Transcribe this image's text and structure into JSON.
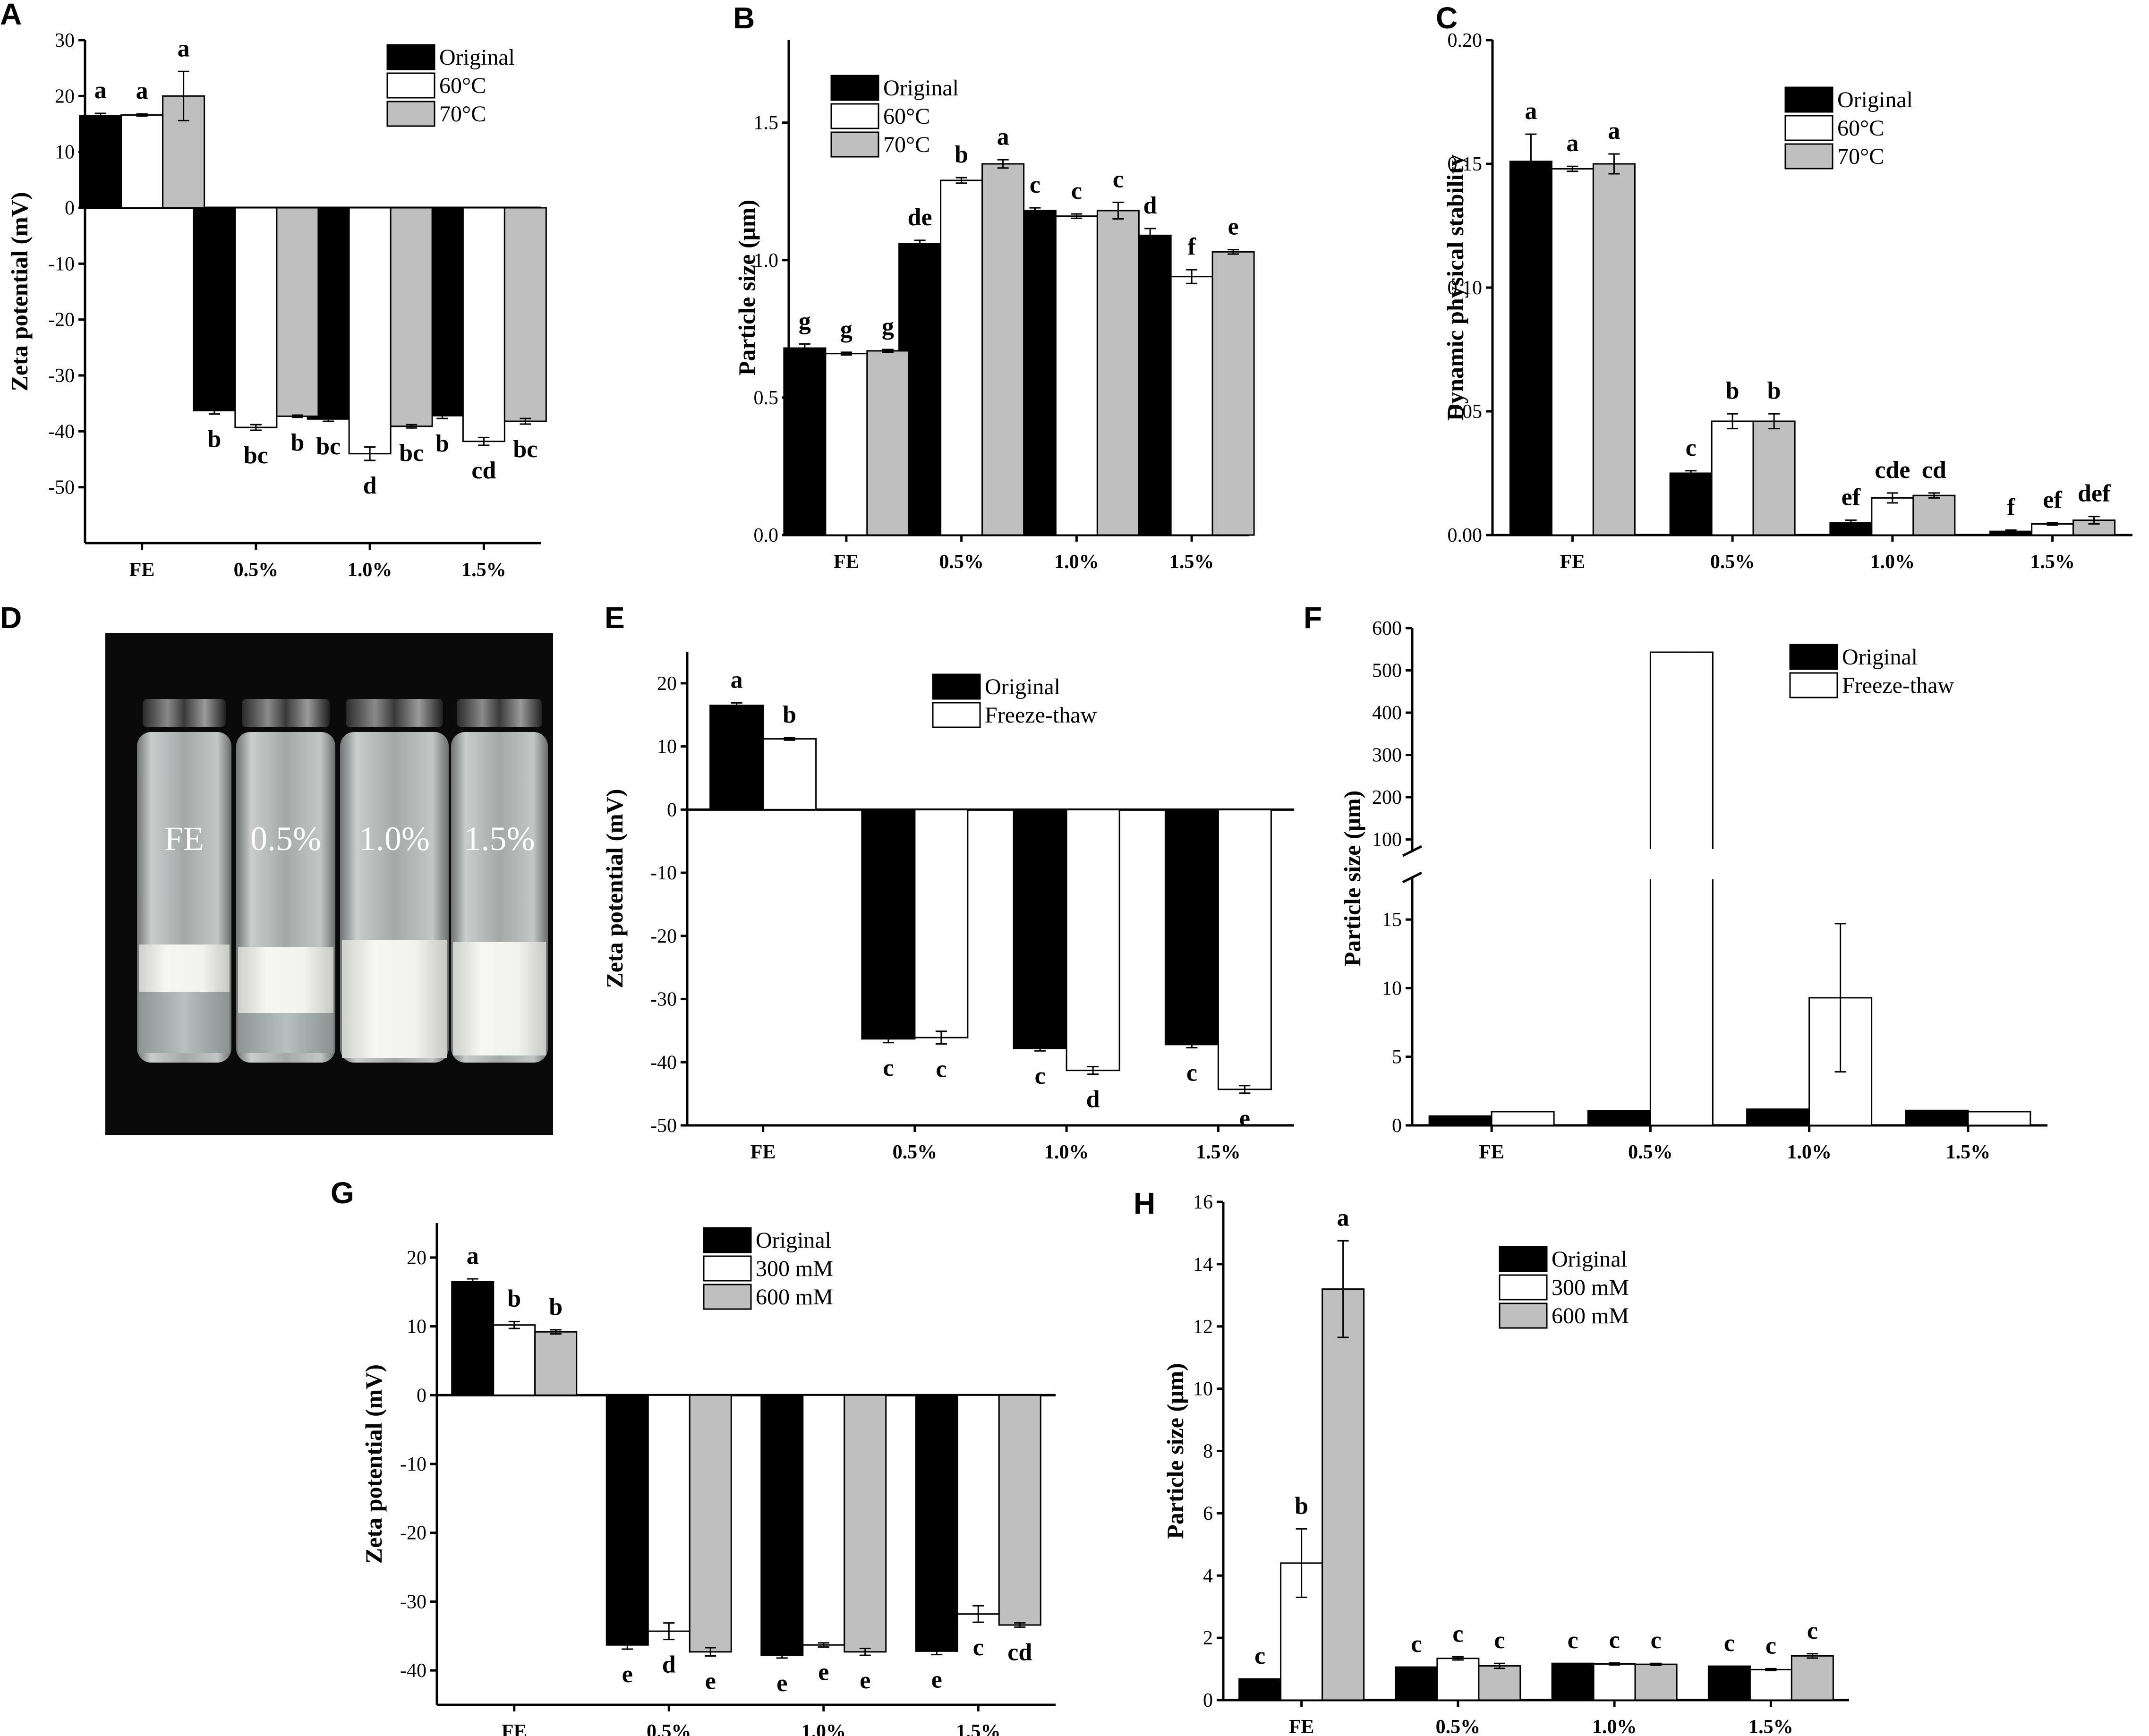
{
  "panel_labels": [
    "A",
    "B",
    "C",
    "D",
    "E",
    "F",
    "G",
    "H"
  ],
  "photo": {
    "labels": [
      "FE",
      "0.5%",
      "1.0%",
      "1.5%"
    ]
  },
  "colors": {
    "original": "#000000",
    "treatment_1": "#ffffff",
    "treatment_2": "#bfbfbf"
  },
  "chart_data": [
    {
      "panel": "A",
      "type": "bar",
      "categories": [
        "FE",
        "0.5%",
        "1.0%",
        "1.5%"
      ],
      "ylabel": "Zeta potential (mV)",
      "xlabel": "",
      "ylim": [
        -60,
        30
      ],
      "yticks": [
        -50,
        -40,
        -30,
        -20,
        -10,
        0,
        10,
        20,
        30
      ],
      "legend_position": "top-right",
      "series": [
        {
          "name": "Original",
          "color": "#000000",
          "values": [
            16.5,
            -36.3,
            -37.8,
            -37.2
          ],
          "errors": [
            0.4,
            0.6,
            0.4,
            0.5
          ],
          "letters": [
            "a",
            "b",
            "bc",
            "b"
          ]
        },
        {
          "name": "60°C",
          "color": "#ffffff",
          "values": [
            16.6,
            -39.3,
            -44.0,
            -41.8
          ],
          "errors": [
            0.2,
            0.5,
            1.2,
            0.7
          ],
          "letters": [
            "a",
            "bc",
            "d",
            "cd"
          ]
        },
        {
          "name": "70°C",
          "color": "#bfbfbf",
          "values": [
            20.0,
            -37.3,
            -39.1,
            -38.2
          ],
          "errors": [
            4.4,
            0.2,
            0.3,
            0.5
          ],
          "letters": [
            "a",
            "b",
            "bc",
            "bc"
          ]
        }
      ]
    },
    {
      "panel": "B",
      "type": "bar",
      "categories": [
        "FE",
        "0.5%",
        "1.0%",
        "1.5%"
      ],
      "ylabel": "Particle size (μm)",
      "xlabel": "",
      "ylim": [
        0,
        1.8
      ],
      "yticks": [
        0.0,
        0.5,
        1.0,
        1.5
      ],
      "legend_position": "top-left",
      "series": [
        {
          "name": "Original",
          "color": "#000000",
          "values": [
            0.68,
            1.06,
            1.18,
            1.09
          ],
          "errors": [
            0.015,
            0.012,
            0.01,
            0.025
          ],
          "letters": [
            "g",
            "de",
            "c",
            "d"
          ]
        },
        {
          "name": "60°C",
          "color": "#ffffff",
          "values": [
            0.66,
            1.29,
            1.16,
            0.94
          ],
          "errors": [
            0.005,
            0.01,
            0.008,
            0.025
          ],
          "letters": [
            "g",
            "b",
            "c",
            "f"
          ]
        },
        {
          "name": "70°C",
          "color": "#bfbfbf",
          "values": [
            0.67,
            1.35,
            1.18,
            1.03
          ],
          "errors": [
            0.005,
            0.015,
            0.03,
            0.008
          ],
          "letters": [
            "g",
            "a",
            "c",
            "e"
          ]
        }
      ]
    },
    {
      "panel": "C",
      "type": "bar",
      "categories": [
        "FE",
        "0.5%",
        "1.0%",
        "1.5%"
      ],
      "ylabel": "Dynamic physical stability",
      "xlabel": "",
      "ylim": [
        0,
        0.2
      ],
      "yticks": [
        0.0,
        0.05,
        0.1,
        0.15,
        0.2
      ],
      "tick_labels": [
        "0.00",
        "0.05",
        "0.10",
        "0.15",
        "0.20"
      ],
      "legend_position": "top-right",
      "series": [
        {
          "name": "Original",
          "color": "#000000",
          "values": [
            0.151,
            0.025,
            0.005,
            0.0015
          ],
          "errors": [
            0.011,
            0.001,
            0.001,
            0.0005
          ],
          "letters": [
            "a",
            "c",
            "ef",
            "f"
          ]
        },
        {
          "name": "60°C",
          "color": "#ffffff",
          "values": [
            0.148,
            0.046,
            0.015,
            0.0045
          ],
          "errors": [
            0.001,
            0.003,
            0.002,
            0.0005
          ],
          "letters": [
            "a",
            "b",
            "cde",
            "ef"
          ]
        },
        {
          "name": "70°C",
          "color": "#bfbfbf",
          "values": [
            0.15,
            0.046,
            0.016,
            0.006
          ],
          "errors": [
            0.004,
            0.003,
            0.001,
            0.0015
          ],
          "letters": [
            "a",
            "b",
            "cd",
            "def"
          ]
        }
      ]
    },
    {
      "panel": "E",
      "type": "bar",
      "categories": [
        "FE",
        "0.5%",
        "1.0%",
        "1.5%"
      ],
      "ylabel": "Zeta potential (mV)",
      "xlabel": "",
      "ylim": [
        -50,
        25
      ],
      "yticks": [
        -50,
        -40,
        -30,
        -20,
        -10,
        0,
        10,
        20
      ],
      "legend_position": "top-right",
      "series": [
        {
          "name": "Original",
          "color": "#000000",
          "values": [
            16.5,
            -36.3,
            -37.8,
            -37.2
          ],
          "errors": [
            0.4,
            0.6,
            0.4,
            0.5
          ],
          "letters": [
            "a",
            "c",
            "c",
            "c"
          ]
        },
        {
          "name": "Freeze-thaw",
          "color": "#ffffff",
          "values": [
            11.2,
            -36.1,
            -41.3,
            -44.3
          ],
          "errors": [
            0.2,
            1.0,
            0.6,
            0.6
          ],
          "letters": [
            "b",
            "c",
            "d",
            "e"
          ]
        }
      ]
    },
    {
      "panel": "F",
      "type": "bar",
      "categories": [
        "FE",
        "0.5%",
        "1.0%",
        "1.5%"
      ],
      "ylabel": "Particle size (μm)",
      "xlabel": "",
      "axis_break": {
        "lower": [
          0,
          18
        ],
        "upper": [
          0,
          600
        ]
      },
      "yticks_lower": [
        0,
        5,
        10,
        15
      ],
      "yticks_upper": [
        100,
        200,
        300,
        400,
        500,
        600
      ],
      "legend_position": "top-right",
      "series": [
        {
          "name": "Original",
          "color": "#000000",
          "values": [
            0.68,
            1.06,
            1.18,
            1.09
          ],
          "errors": [
            0,
            0,
            0,
            0
          ]
        },
        {
          "name": "Freeze-thaw",
          "color": "#ffffff",
          "values": [
            1.0,
            543,
            9.3,
            1.0
          ],
          "errors": [
            0,
            2,
            5.4,
            0
          ]
        }
      ]
    },
    {
      "panel": "G",
      "type": "bar",
      "categories": [
        "FE",
        "0.5%",
        "1.0%",
        "1.5%"
      ],
      "ylabel": "Zeta potential (mV)",
      "xlabel": "",
      "ylim": [
        -45,
        25
      ],
      "yticks": [
        -40,
        -30,
        -20,
        -10,
        0,
        10,
        20
      ],
      "legend_position": "top-right",
      "series": [
        {
          "name": "Original",
          "color": "#000000",
          "values": [
            16.5,
            -36.3,
            -37.8,
            -37.2
          ],
          "errors": [
            0.4,
            0.6,
            0.4,
            0.5
          ],
          "letters": [
            "a",
            "e",
            "e",
            "e"
          ]
        },
        {
          "name": "300 mM",
          "color": "#ffffff",
          "values": [
            10.2,
            -34.3,
            -36.3,
            -31.8
          ],
          "errors": [
            0.5,
            1.2,
            0.3,
            1.2
          ],
          "letters": [
            "b",
            "d",
            "e",
            "c"
          ]
        },
        {
          "name": "600 mM",
          "color": "#bfbfbf",
          "values": [
            9.2,
            -37.3,
            -37.3,
            -33.4
          ],
          "errors": [
            0.3,
            0.6,
            0.5,
            0.3
          ],
          "letters": [
            "b",
            "e",
            "e",
            "cd"
          ]
        }
      ]
    },
    {
      "panel": "H",
      "type": "bar",
      "categories": [
        "FE",
        "0.5%",
        "1.0%",
        "1.5%"
      ],
      "ylabel": "Particle size (μm)",
      "xlabel": "",
      "ylim": [
        0,
        16
      ],
      "yticks": [
        0,
        2,
        4,
        6,
        8,
        10,
        12,
        14,
        16
      ],
      "legend_position": "top-right",
      "series": [
        {
          "name": "Original",
          "color": "#000000",
          "values": [
            0.68,
            1.06,
            1.18,
            1.09
          ],
          "errors": [
            0,
            0,
            0,
            0
          ],
          "letters": [
            "c",
            "c",
            "c",
            "c"
          ]
        },
        {
          "name": "300 mM",
          "color": "#ffffff",
          "values": [
            4.4,
            1.34,
            1.16,
            0.98
          ],
          "errors": [
            1.1,
            0.05,
            0.03,
            0.03
          ],
          "letters": [
            "b",
            "c",
            "c",
            "c"
          ]
        },
        {
          "name": "600 mM",
          "color": "#bfbfbf",
          "values": [
            13.2,
            1.1,
            1.15,
            1.42
          ],
          "errors": [
            1.55,
            0.08,
            0.03,
            0.07
          ],
          "letters": [
            "a",
            "c",
            "c",
            "c"
          ]
        }
      ]
    }
  ]
}
